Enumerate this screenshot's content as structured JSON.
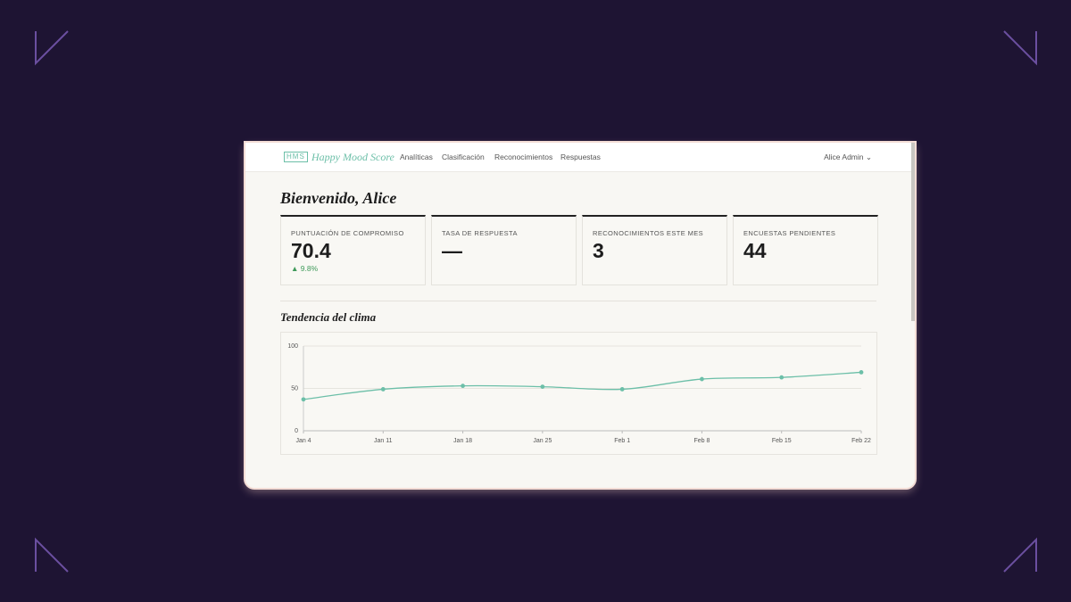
{
  "header": {
    "logo": "HMS",
    "brand": "Happy Mood Score",
    "nav": [
      "Analíticas",
      "Clasificación",
      "Reconocimientos",
      "Respuestas"
    ],
    "user": "Alice Admin"
  },
  "welcome": "Bienvenido, Alice",
  "stats": [
    {
      "label": "PUNTUACIÓN DE COMPROMISO",
      "value": 70.4,
      "change": "▲ 9.8%"
    },
    {
      "label": "TASA DE RESPUESTA",
      "value": "—"
    },
    {
      "label": "RECONOCIMIENTOS ESTE MES",
      "value": 3
    },
    {
      "label": "ENCUESTAS PENDIENTES",
      "value": 44
    }
  ],
  "chart_data": {
    "type": "line",
    "title": "Tendencia del clima",
    "categories": [
      "Jan 4",
      "Jan 11",
      "Jan 18",
      "Jan 25",
      "Feb 1",
      "Feb 8",
      "Feb 15",
      "Feb 22"
    ],
    "values": [
      37,
      49,
      53,
      52,
      49,
      61,
      63,
      69
    ],
    "color": "#6cbfa8",
    "ylim": [
      0,
      100
    ],
    "yticks": [
      0,
      50,
      100
    ],
    "grid": true
  }
}
